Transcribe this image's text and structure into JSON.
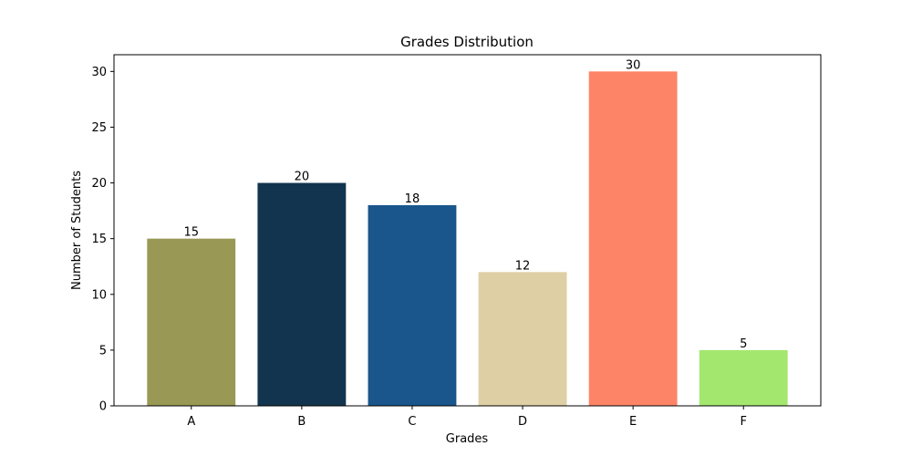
{
  "chart_data": {
    "type": "bar",
    "title": "Grades Distribution",
    "xlabel": "Grades",
    "ylabel": "Number of Students",
    "categories": [
      "A",
      "B",
      "C",
      "D",
      "E",
      "F"
    ],
    "values": [
      15,
      20,
      18,
      12,
      30,
      5
    ],
    "value_labels": [
      "15",
      "20",
      "18",
      "12",
      "30",
      "5"
    ],
    "colors": [
      "#999955",
      "#12344e",
      "#1a568b",
      "#dfcfa5",
      "#fe8468",
      "#a4e76f"
    ],
    "ylim": [
      0,
      31.5
    ],
    "yticks": [
      0,
      5,
      10,
      15,
      20,
      25,
      30
    ],
    "ytick_labels": [
      "0",
      "5",
      "10",
      "15",
      "20",
      "25",
      "30"
    ],
    "grid": false,
    "legend": false
  }
}
